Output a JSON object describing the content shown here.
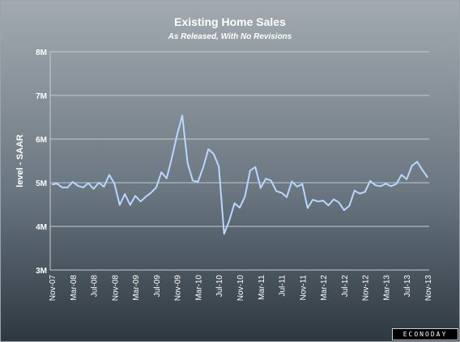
{
  "chart_data": {
    "type": "line",
    "title": "Existing Home Sales",
    "subtitle": "As Released, With No Revisions",
    "ylabel": "level - SAAR",
    "xlabel": "",
    "ylim": [
      3,
      8
    ],
    "yticks": [
      3,
      4,
      5,
      6,
      7,
      8
    ],
    "ytick_labels": [
      "3M",
      "4M",
      "5M",
      "6M",
      "7M",
      "8M"
    ],
    "xtick_labels": [
      "Nov-07",
      "Mar-08",
      "Jul-08",
      "Nov-08",
      "Mar-09",
      "Jul-09",
      "Nov-09",
      "Mar-10",
      "Jul-10",
      "Nov-10",
      "Mar-11",
      "Jul-11",
      "Nov-11",
      "Mar-12",
      "Jul-12",
      "Nov-12",
      "Mar-13",
      "Jul-13",
      "Nov-13"
    ],
    "grid": true,
    "line_color": "#b8d8ff",
    "series": [
      {
        "x": [
          "Nov-07",
          "Dec-07",
          "Jan-08",
          "Feb-08",
          "Mar-08",
          "Apr-08",
          "May-08",
          "Jun-08",
          "Jul-08",
          "Aug-08",
          "Sep-08",
          "Oct-08",
          "Nov-08",
          "Dec-08",
          "Jan-09",
          "Feb-09",
          "Mar-09",
          "Apr-09",
          "May-09",
          "Jun-09",
          "Jul-09",
          "Aug-09",
          "Sep-09",
          "Oct-09",
          "Nov-09",
          "Dec-09",
          "Jan-10",
          "Feb-10",
          "Mar-10",
          "Apr-10",
          "May-10",
          "Jun-10",
          "Jul-10",
          "Aug-10",
          "Sep-10",
          "Oct-10",
          "Nov-10",
          "Dec-10",
          "Jan-11",
          "Feb-11",
          "Mar-11",
          "Apr-11",
          "May-11",
          "Jun-11",
          "Jul-11",
          "Aug-11",
          "Sep-11",
          "Oct-11",
          "Nov-11",
          "Dec-11",
          "Jan-12",
          "Feb-12",
          "Mar-12",
          "Apr-12",
          "May-12",
          "Jun-12",
          "Jul-12",
          "Aug-12",
          "Sep-12",
          "Oct-12",
          "Nov-12",
          "Dec-12",
          "Jan-13",
          "Feb-13",
          "Mar-13",
          "Apr-13",
          "May-13",
          "Jun-13",
          "Jul-13",
          "Aug-13",
          "Sep-13",
          "Oct-13",
          "Nov-13"
        ],
        "values": [
          4.96,
          4.98,
          4.89,
          4.89,
          5.02,
          4.93,
          4.89,
          4.99,
          4.86,
          5.0,
          4.91,
          5.18,
          4.98,
          4.49,
          4.74,
          4.49,
          4.7,
          4.57,
          4.68,
          4.77,
          4.89,
          5.24,
          5.1,
          5.57,
          6.1,
          6.54,
          5.45,
          5.05,
          5.02,
          5.35,
          5.77,
          5.66,
          5.37,
          3.83,
          4.13,
          4.53,
          4.43,
          4.68,
          5.28,
          5.36,
          4.88,
          5.09,
          5.05,
          4.81,
          4.77,
          4.67,
          5.03,
          4.91,
          4.97,
          4.42,
          4.61,
          4.57,
          4.59,
          4.48,
          4.62,
          4.55,
          4.37,
          4.47,
          4.82,
          4.75,
          4.79,
          5.04,
          4.94,
          4.92,
          4.98,
          4.92,
          4.97,
          5.18,
          5.08,
          5.39,
          5.48,
          5.29,
          5.12
        ]
      }
    ]
  },
  "brand": "ECONODAY"
}
